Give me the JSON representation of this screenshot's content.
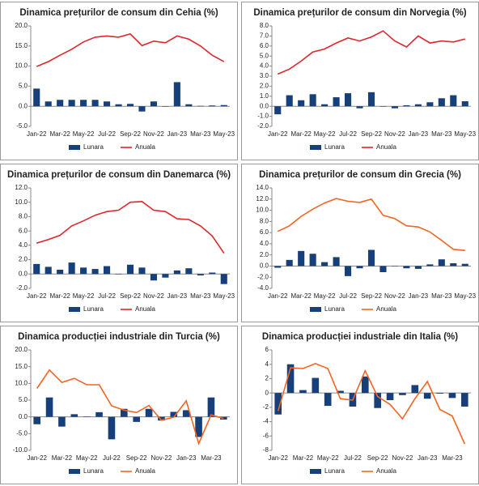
{
  "chart_data": [
    {
      "type": "bar_line",
      "title": "Dinamica prețurilor de consum din Cehia (%)",
      "categories": [
        "Jan-22",
        null,
        "Mar-22",
        null,
        "May-22",
        null,
        "Jul-22",
        null,
        "Sep-22",
        null,
        "Nov-22",
        null,
        "Jan-23",
        null,
        "Mar-23",
        null,
        "May-23"
      ],
      "series": [
        {
          "name": "Lunara",
          "type": "bar",
          "color": "#17407a",
          "values": [
            4.4,
            1.2,
            1.6,
            1.6,
            1.6,
            1.6,
            1.2,
            0.5,
            0.6,
            -1.3,
            1.2,
            0.0,
            6.0,
            0.5,
            0.1,
            0.2,
            0.3
          ]
        },
        {
          "name": "Anuala",
          "type": "line",
          "color": "#e0262b",
          "values": [
            9.9,
            11.1,
            12.7,
            14.2,
            16.0,
            17.2,
            17.5,
            17.2,
            18.0,
            15.1,
            16.2,
            15.8,
            17.5,
            16.7,
            15.0,
            12.7,
            11.1
          ]
        }
      ],
      "ylim": [
        -5,
        20
      ],
      "yticks": [
        {
          "value": -5,
          "label": "-5.0"
        },
        {
          "value": 0,
          "label": "0.0"
        },
        {
          "value": 5,
          "label": "5.0"
        },
        {
          "value": 10,
          "label": "10.0"
        },
        {
          "value": 15,
          "label": "15.0"
        },
        {
          "value": 20,
          "label": "20.0"
        }
      ],
      "grid": false,
      "legend": "bottom"
    },
    {
      "type": "bar_line",
      "title": "Dinamica prețurilor de consum din Norvegia (%)",
      "categories": [
        "Jan-22",
        null,
        "Mar-22",
        null,
        "May-22",
        null,
        "Jul-22",
        null,
        "Sep-22",
        null,
        "Nov-22",
        null,
        "Jan-23",
        null,
        "Mar-23",
        null,
        "May-23"
      ],
      "series": [
        {
          "name": "Lunara",
          "type": "bar",
          "color": "#17407a",
          "values": [
            -0.8,
            1.1,
            0.6,
            1.2,
            0.2,
            0.9,
            1.3,
            -0.2,
            1.4,
            0.0,
            -0.2,
            0.1,
            0.2,
            0.4,
            0.8,
            1.1,
            0.5
          ]
        },
        {
          "name": "Anuala",
          "type": "line",
          "color": "#e0262b",
          "values": [
            3.2,
            3.7,
            4.5,
            5.4,
            5.7,
            6.3,
            6.8,
            6.5,
            6.9,
            7.5,
            6.5,
            5.9,
            7.0,
            6.3,
            6.5,
            6.4,
            6.7
          ]
        }
      ],
      "ylim": [
        -2,
        8
      ],
      "yticks": [
        {
          "value": -2,
          "label": "-2.0"
        },
        {
          "value": -1,
          "label": "-1.0"
        },
        {
          "value": 0,
          "label": "0.0"
        },
        {
          "value": 1,
          "label": "1.0"
        },
        {
          "value": 2,
          "label": "2.0"
        },
        {
          "value": 3,
          "label": "3.0"
        },
        {
          "value": 4,
          "label": "4.0"
        },
        {
          "value": 5,
          "label": "5.0"
        },
        {
          "value": 6,
          "label": "6.0"
        },
        {
          "value": 7,
          "label": "7.0"
        },
        {
          "value": 8,
          "label": "8.0"
        }
      ],
      "grid": false,
      "legend": "bottom"
    },
    {
      "type": "bar_line",
      "title": "Dinamica prețurilor de consum din Danemarca (%)",
      "categories": [
        "Jan-22",
        null,
        "Mar-22",
        null,
        "May-22",
        null,
        "Jul-22",
        null,
        "Sep-22",
        null,
        "Nov-22",
        null,
        "Jan-23",
        null,
        "Mar-23",
        null,
        "May-23"
      ],
      "series": [
        {
          "name": "Lunara",
          "type": "bar",
          "color": "#17407a",
          "values": [
            1.4,
            1.0,
            0.6,
            1.6,
            0.9,
            0.7,
            1.1,
            0.0,
            1.3,
            0.9,
            -0.9,
            -0.5,
            0.5,
            0.8,
            -0.2,
            0.2,
            -1.4
          ]
        },
        {
          "name": "Anuala",
          "type": "line",
          "color": "#e0262b",
          "values": [
            4.3,
            4.8,
            5.4,
            6.7,
            7.4,
            8.2,
            8.7,
            8.9,
            10.0,
            10.1,
            8.9,
            8.7,
            7.7,
            7.6,
            6.7,
            5.3,
            2.9
          ]
        }
      ],
      "ylim": [
        -2,
        12
      ],
      "yticks": [
        {
          "value": -2,
          "label": "-2.0"
        },
        {
          "value": 0,
          "label": "0.0"
        },
        {
          "value": 2,
          "label": "2.0"
        },
        {
          "value": 4,
          "label": "4.0"
        },
        {
          "value": 6,
          "label": "6.0"
        },
        {
          "value": 8,
          "label": "8.0"
        },
        {
          "value": 10,
          "label": "10.0"
        },
        {
          "value": 12,
          "label": "12.0"
        }
      ],
      "grid": false,
      "legend": "bottom"
    },
    {
      "type": "bar_line",
      "title": "Dinamica prețurilor de consum din Grecia (%)",
      "categories": [
        "Jan-22",
        null,
        "Mar-22",
        null,
        "May-22",
        null,
        "Jul-22",
        null,
        "Sep-22",
        null,
        "Nov-22",
        null,
        "Jan-23",
        null,
        "Mar-23",
        null,
        "May-23"
      ],
      "series": [
        {
          "name": "Lunara",
          "type": "bar",
          "color": "#17407a",
          "values": [
            -0.3,
            1.1,
            2.7,
            2.2,
            0.7,
            1.6,
            -1.8,
            -0.4,
            2.9,
            -1.1,
            0.0,
            -0.4,
            -0.5,
            0.3,
            1.2,
            0.5,
            0.4
          ]
        },
        {
          "name": "Anuala",
          "type": "line",
          "color": "#f26522",
          "values": [
            6.2,
            7.2,
            8.9,
            10.2,
            11.3,
            12.1,
            11.6,
            11.4,
            12.0,
            9.1,
            8.5,
            7.2,
            7.0,
            6.1,
            4.6,
            3.0,
            2.8
          ]
        }
      ],
      "ylim": [
        -4,
        14
      ],
      "yticks": [
        {
          "value": -4,
          "label": "-4.0"
        },
        {
          "value": -2,
          "label": "-2.0"
        },
        {
          "value": 0,
          "label": "0.0"
        },
        {
          "value": 2,
          "label": "2.0"
        },
        {
          "value": 4,
          "label": "4.0"
        },
        {
          "value": 6,
          "label": "6.0"
        },
        {
          "value": 8,
          "label": "8.0"
        },
        {
          "value": 10,
          "label": "10.0"
        },
        {
          "value": 12,
          "label": "12.0"
        },
        {
          "value": 14,
          "label": "14.0"
        }
      ],
      "grid": false,
      "legend": "bottom"
    },
    {
      "type": "bar_line",
      "title": "Dinamica producției industriale din Turcia (%)",
      "categories": [
        "Jan-22",
        null,
        "Mar-22",
        null,
        "May-22",
        null,
        "Jul-22",
        null,
        "Sep-22",
        null,
        "Nov-22",
        null,
        "Jan-23",
        null,
        "Mar-23",
        null
      ],
      "series": [
        {
          "name": "Lunara",
          "type": "bar",
          "color": "#17407a",
          "values": [
            -2.2,
            5.8,
            -2.9,
            0.8,
            0.1,
            1.4,
            -6.7,
            2.4,
            -1.5,
            2.4,
            -1.1,
            1.5,
            2.0,
            -6.0,
            5.8,
            -0.8
          ]
        },
        {
          "name": "Anuala",
          "type": "line",
          "color": "#f26522",
          "values": [
            8.5,
            14.0,
            10.3,
            11.5,
            9.6,
            9.6,
            3.3,
            2.0,
            1.3,
            3.4,
            -1.0,
            -0.1,
            4.8,
            -8.0,
            0.6,
            -0.5
          ]
        }
      ],
      "ylim": [
        -10,
        20
      ],
      "yticks": [
        {
          "value": -10,
          "label": "-10.0"
        },
        {
          "value": -5,
          "label": "-5.0"
        },
        {
          "value": 0,
          "label": "0.0"
        },
        {
          "value": 5,
          "label": "5.0"
        },
        {
          "value": 10,
          "label": "10.0"
        },
        {
          "value": 15,
          "label": "15.0"
        },
        {
          "value": 20,
          "label": "20.0"
        }
      ],
      "grid": false,
      "legend": "bottom"
    },
    {
      "type": "bar_line",
      "title": "Dinamica producției industriale din Italia (%)",
      "categories": [
        "Jan-22",
        null,
        "Mar-22",
        null,
        "May-22",
        null,
        "Jul-22",
        null,
        "Sep-22",
        null,
        "Nov-22",
        null,
        "Jan-23",
        null,
        "Mar-23",
        null
      ],
      "series": [
        {
          "name": "Lunara",
          "type": "bar",
          "color": "#17407a",
          "values": [
            -3.0,
            4.0,
            0.4,
            2.1,
            -1.8,
            0.3,
            -1.9,
            2.3,
            -2.1,
            -1.0,
            -0.3,
            1.1,
            -0.8,
            -0.1,
            -0.7,
            -1.9
          ]
        },
        {
          "name": "Anuala",
          "type": "line",
          "color": "#f26522",
          "values": [
            -2.5,
            3.5,
            3.4,
            4.1,
            3.4,
            -0.8,
            -1.0,
            3.1,
            -0.5,
            -1.6,
            -3.6,
            -0.8,
            1.6,
            -2.3,
            -3.2,
            -7.1
          ]
        }
      ],
      "ylim": [
        -8,
        6
      ],
      "yticks": [
        -8,
        -6,
        -4,
        -2,
        0,
        2,
        4,
        6
      ],
      "grid": false,
      "legend": "bottom"
    }
  ]
}
